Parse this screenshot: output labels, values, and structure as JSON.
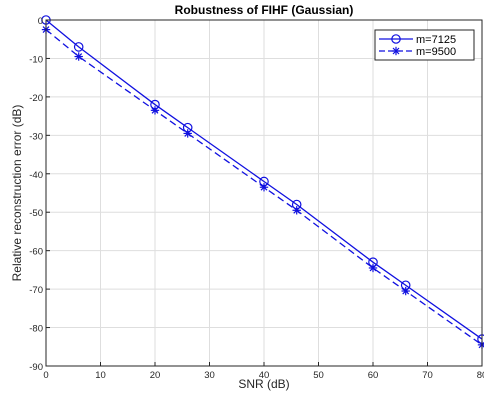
{
  "chart_data": {
    "type": "line",
    "title": "Robustness of FIHF (Gaussian)",
    "xlabel": "SNR (dB)",
    "ylabel": "Relative reconstruction error (dB)",
    "xlim": [
      0,
      80
    ],
    "ylim": [
      -90,
      0
    ],
    "xticks": [
      0,
      10,
      20,
      30,
      40,
      50,
      60,
      70,
      80
    ],
    "yticks": [
      0,
      -10,
      -20,
      -30,
      -40,
      -50,
      -60,
      -70,
      -80,
      -90
    ],
    "grid": true,
    "legend_position": "top-right",
    "series": [
      {
        "name": "m=7125",
        "marker": "circle",
        "line_style": "solid",
        "color": "#1010e0",
        "x": [
          0,
          6,
          20,
          26,
          40,
          46,
          60,
          66,
          80
        ],
        "y": [
          0,
          -7,
          -22,
          -28,
          -42,
          -48,
          -63,
          -69,
          -83
        ]
      },
      {
        "name": "m=9500",
        "marker": "asterisk",
        "line_style": "dashed",
        "color": "#1010e0",
        "x": [
          0,
          6,
          20,
          26,
          40,
          46,
          60,
          66,
          80
        ],
        "y": [
          -2.5,
          -9.5,
          -23.5,
          -29.5,
          -43.5,
          -49.5,
          -64.5,
          -70.5,
          -84.5
        ]
      }
    ]
  }
}
